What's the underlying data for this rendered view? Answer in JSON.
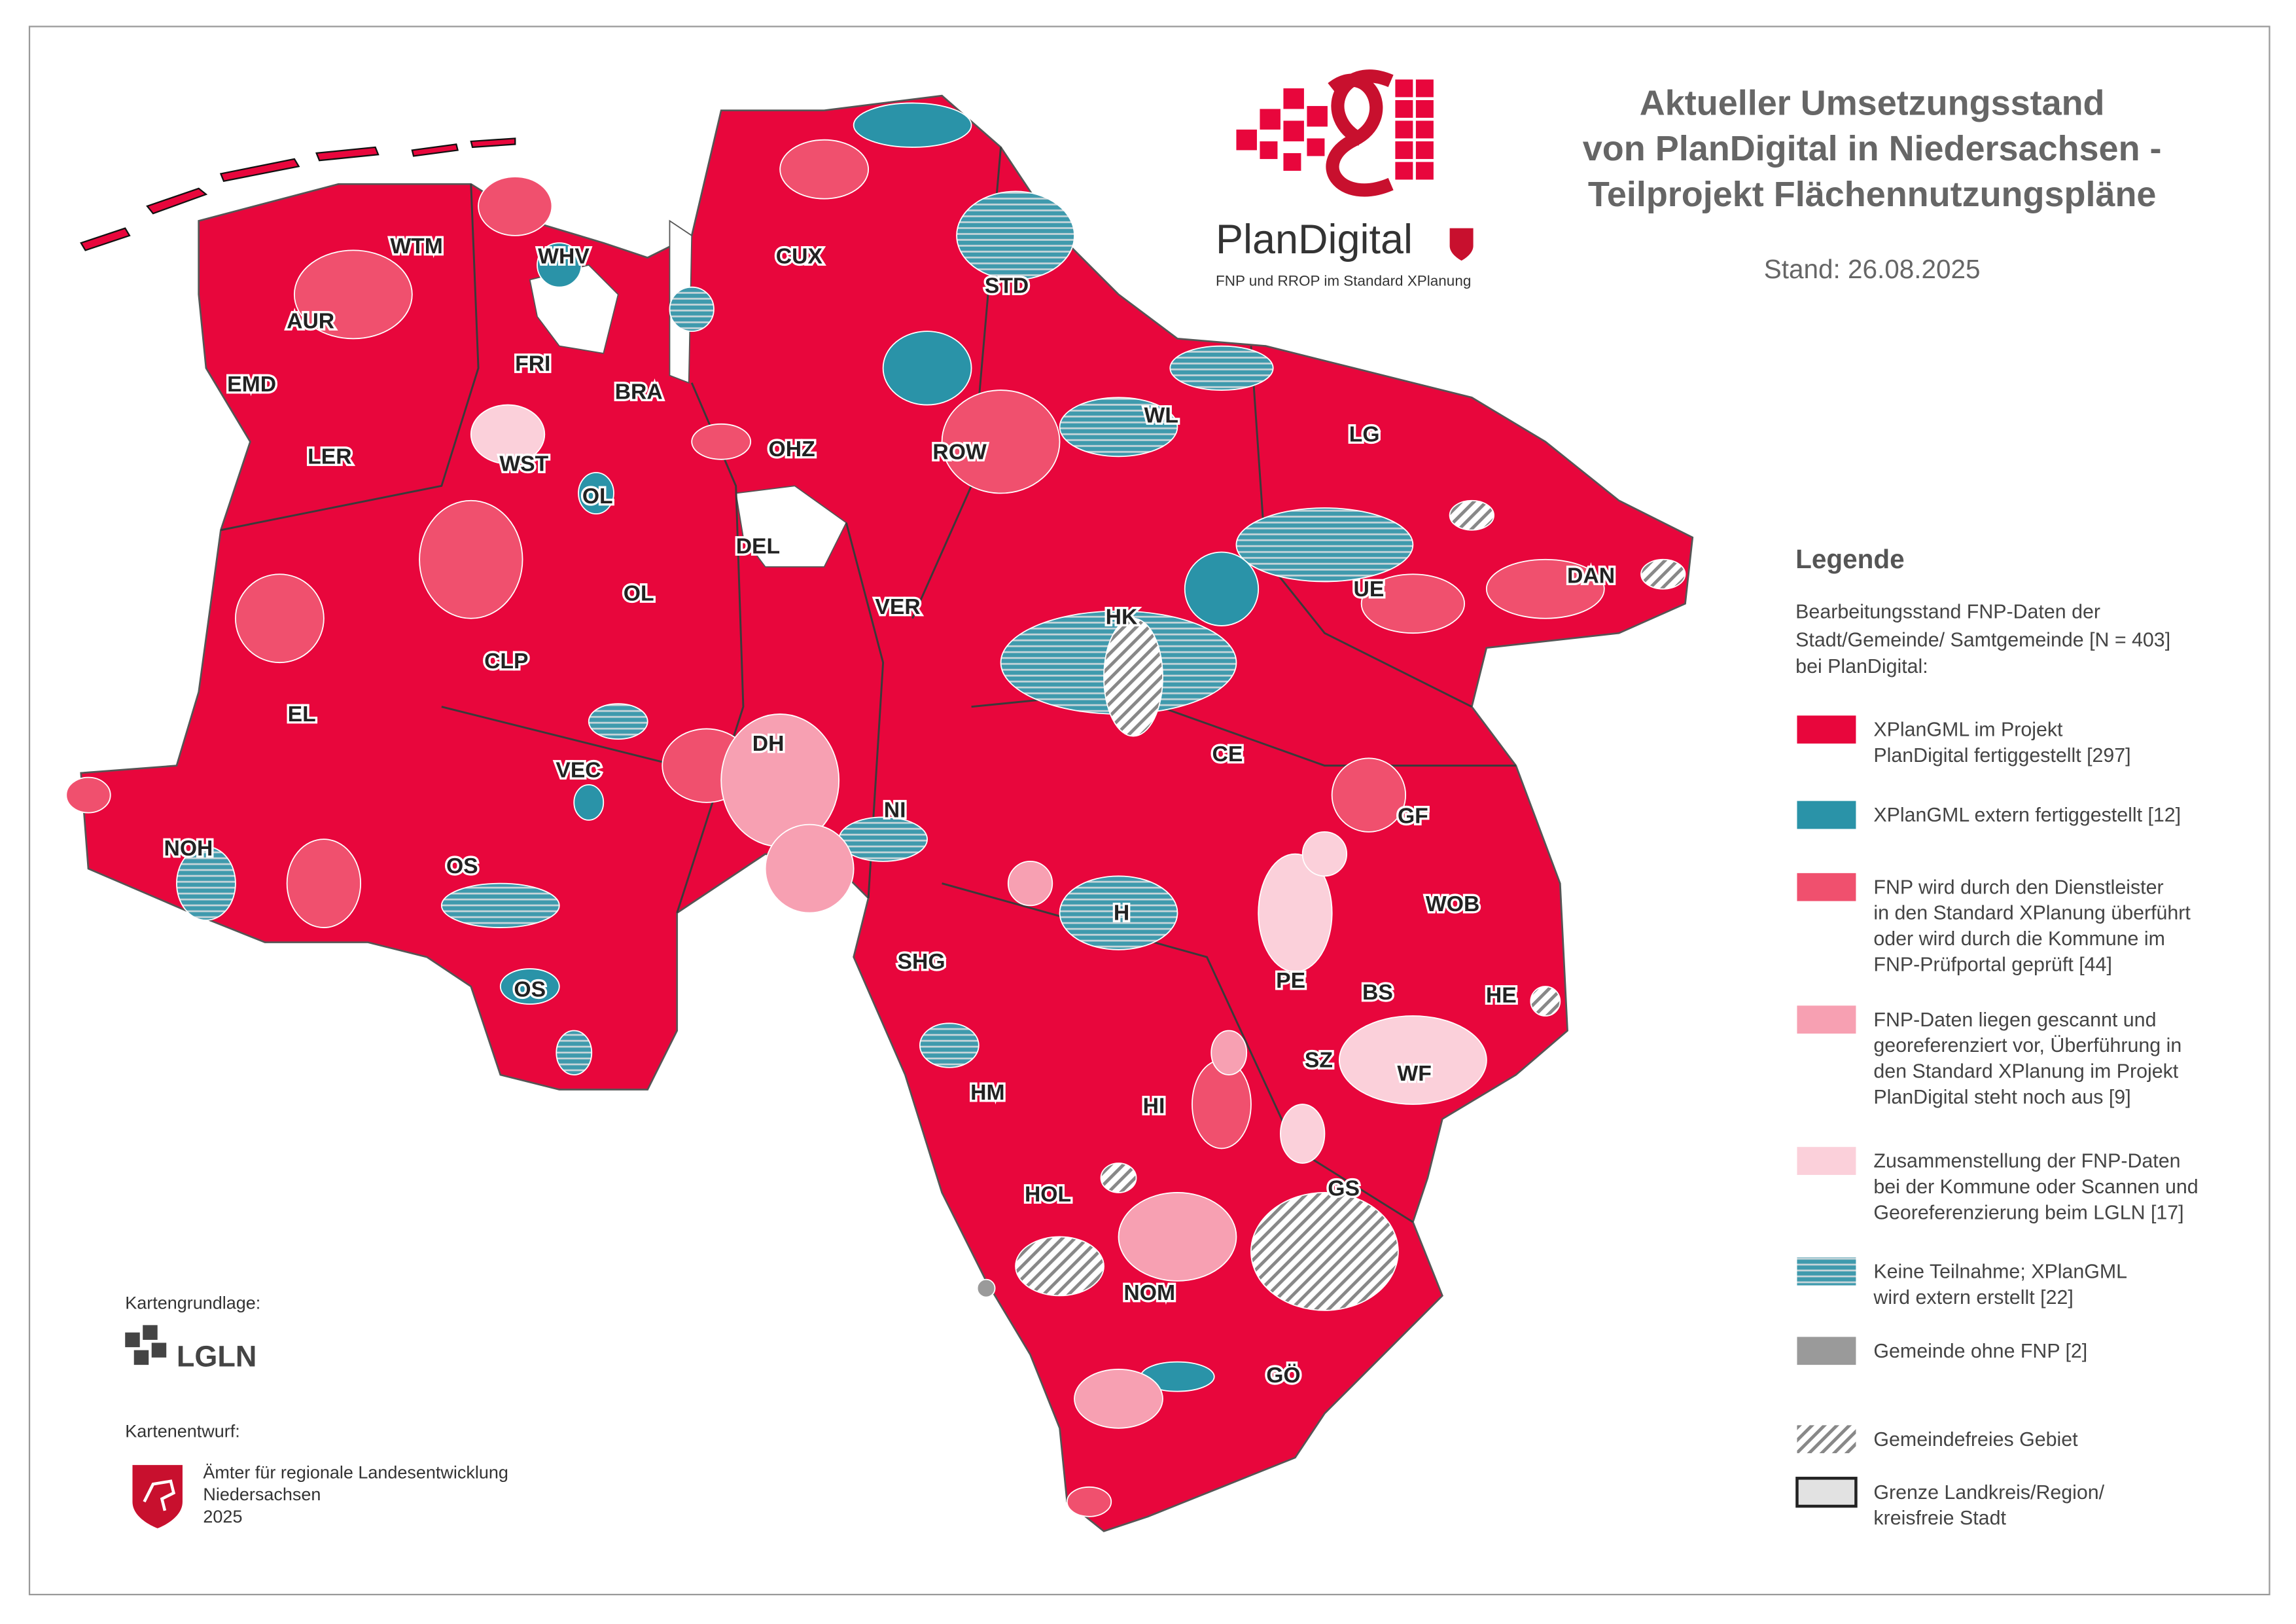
{
  "title": [
    "Aktueller Umsetzungsstand",
    "von PlanDigital in Niedersachsen -",
    "Teilprojekt Flächennutzungspläne"
  ],
  "date": "Stand: 26.08.2025",
  "logo": {
    "name": "PlanDigital",
    "tagline": "FNP und RROP im Standard XPlanung"
  },
  "legend": {
    "title": "Legende",
    "description": [
      "Bearbeitungsstand FNP-Daten der",
      "Stadt/Gemeinde/ Samtgemeinde [N = 403]",
      "bei PlanDigital:"
    ],
    "items": [
      {
        "label": [
          "XPlanGML im Projekt",
          "PlanDigital fertiggestellt [297]"
        ],
        "color": "#e8063c"
      },
      {
        "label": [
          "XPlanGML extern fertiggestellt [12]"
        ],
        "color": "#2a93a8"
      },
      {
        "label": [
          "FNP wird durch den Dienstleister",
          "in den Standard XPlanung überführt",
          "oder wird durch die Kommune im",
          "FNP-Prüfportal geprüft [44]"
        ],
        "color": "#f0506e"
      },
      {
        "label": [
          "FNP-Daten liegen gescannt und",
          "georeferenziert vor, Überführung in",
          "den Standard XPlanung im Projekt",
          "PlanDigital steht noch aus [9]"
        ],
        "color": "#f7a0b2"
      },
      {
        "label": [
          "Zusammenstellung der FNP-Daten",
          "bei der Kommune oder Scannen und",
          "Georeferenzierung beim LGLN [17]"
        ],
        "color": "#fbd0da"
      },
      {
        "label": [
          "Keine Teilnahme; XPlanGML",
          "wird extern erstellt [22]"
        ],
        "color": "#3f9aad",
        "pattern": "stripes"
      },
      {
        "label": [
          "Gemeinde ohne FNP [2]"
        ],
        "color": "#9a9a9a"
      },
      {
        "label": [
          "Gemeindefreies Gebiet"
        ],
        "color": "#ffffff",
        "pattern": "hatch"
      },
      {
        "label": [
          "Grenze Landkreis/Region/",
          "kreisfreie Stadt"
        ],
        "color": "#e2e2e2",
        "pattern": "outline"
      }
    ]
  },
  "districts": [
    "WTM",
    "WHV",
    "AUR",
    "EMD",
    "FRI",
    "BRA",
    "LER",
    "WST",
    "OL",
    "OHZ",
    "CUX",
    "STD",
    "ROW",
    "WL",
    "LG",
    "DEL",
    "OL",
    "VER",
    "HK",
    "UE",
    "DAN",
    "CLP",
    "EL",
    "DH",
    "VEC",
    "CE",
    "NI",
    "GF",
    "NOH",
    "OS",
    "H",
    "WOB",
    "SHG",
    "OS",
    "PE",
    "BS",
    "HE",
    "SZ",
    "WF",
    "HM",
    "HI",
    "HOL",
    "GS",
    "NOM",
    "GÖ"
  ],
  "credits": {
    "basemap_label": "Kartengrundlage:",
    "basemap": "LGLN",
    "design_label": "Kartenentwurf:",
    "design": [
      "Ämter für regionale Landesentwicklung",
      "Niedersachsen",
      "2025"
    ]
  }
}
